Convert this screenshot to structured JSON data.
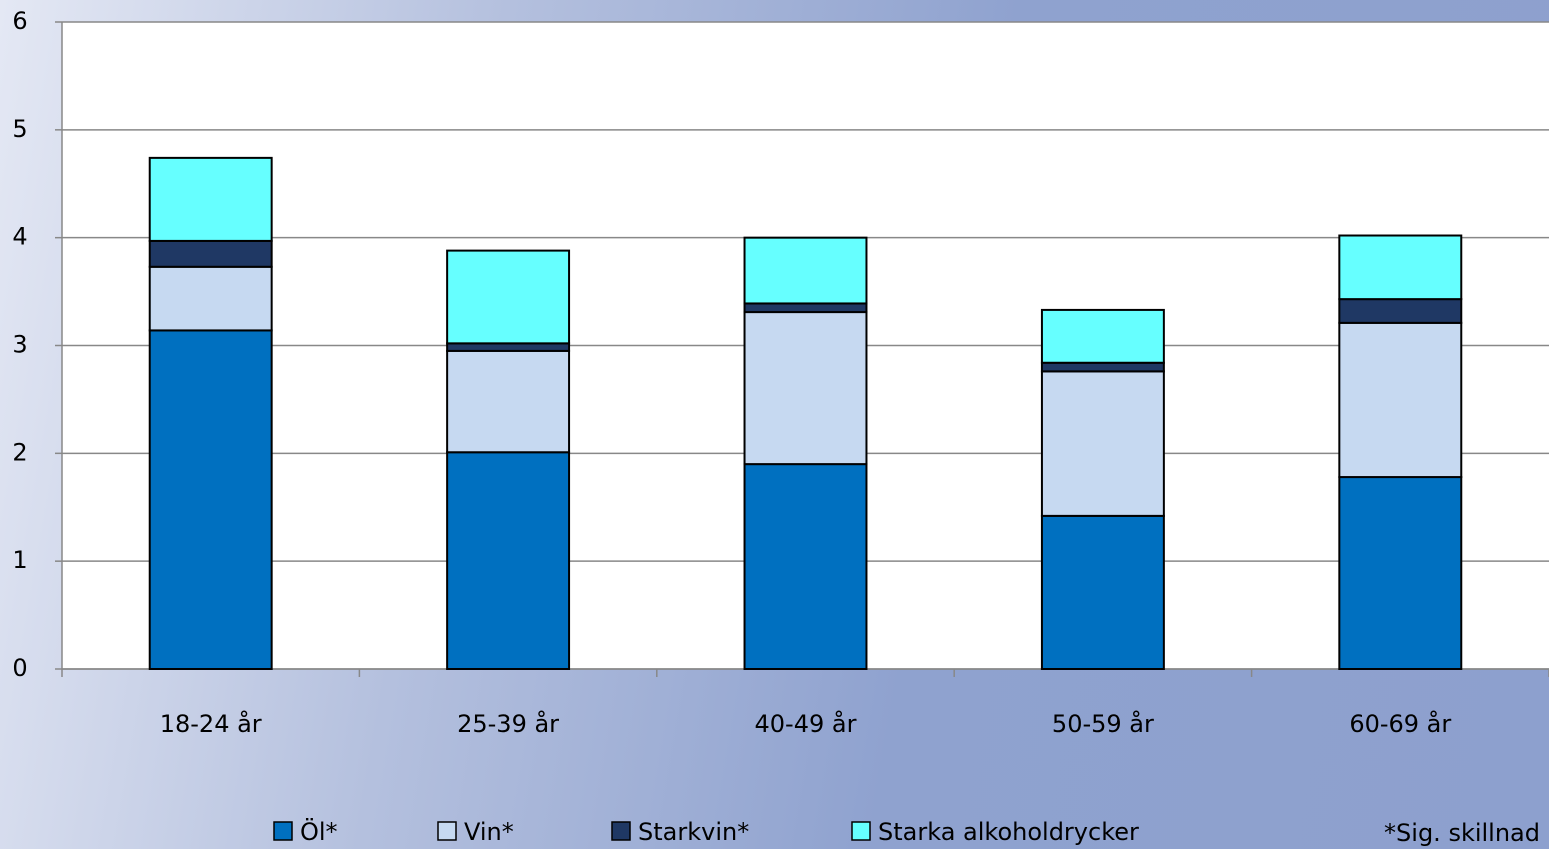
{
  "chart_data": {
    "type": "stacked_bar",
    "categories": [
      "18-24 år",
      "25-39 år",
      "40-49 år",
      "50-59 år",
      "60-69 år"
    ],
    "series": [
      {
        "name": "Öl*",
        "color": "#0070c0",
        "values": [
          3.14,
          2.01,
          1.9,
          1.42,
          1.78
        ]
      },
      {
        "name": "Vin*",
        "color": "#c6d9f1",
        "values": [
          0.59,
          0.94,
          1.41,
          1.34,
          1.43
        ]
      },
      {
        "name": "Starkvin*",
        "color": "#1f3864",
        "values": [
          0.24,
          0.07,
          0.08,
          0.08,
          0.22
        ]
      },
      {
        "name": "Starka alkoholdrycker",
        "color": "#66ffff",
        "values": [
          0.77,
          0.86,
          0.61,
          0.49,
          0.59
        ]
      }
    ],
    "ylim": [
      0,
      6
    ],
    "yticks": [
      0,
      1,
      2,
      3,
      4,
      5,
      6
    ],
    "grid": true,
    "annotation": "*Sig. skillnad"
  }
}
